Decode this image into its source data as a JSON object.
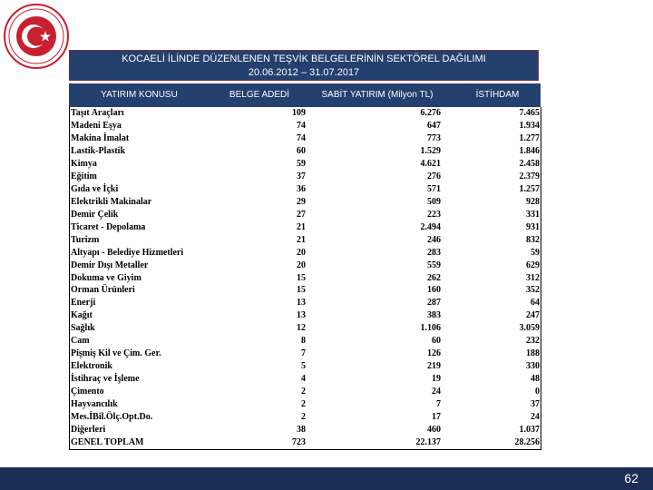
{
  "title": {
    "line1": "KOCAELİ İLİNDE DÜZENLENEN TEŞVİK BELGELERİNİN SEKTÖREL DAĞILIMI",
    "line2": "20.06.2012 – 31.07.2017"
  },
  "table": {
    "headers": [
      "YATIRIM KONUSU",
      "BELGE ADEDİ",
      "SABİT YATIRIM (Milyon TL)",
      "İSTİHDAM"
    ],
    "rows": [
      [
        "Taşıt Araçları",
        "109",
        "6.276",
        "7.465"
      ],
      [
        "Madeni Eşya",
        "74",
        "647",
        "1.934"
      ],
      [
        "Makina İmalat",
        "74",
        "773",
        "1.277"
      ],
      [
        "Lastik-Plastik",
        "60",
        "1.529",
        "1.846"
      ],
      [
        "Kimya",
        "59",
        "4.621",
        "2.458"
      ],
      [
        "Eğitim",
        "37",
        "276",
        "2.379"
      ],
      [
        "Gıda ve İçki",
        "36",
        "571",
        "1.257"
      ],
      [
        "Elektrikli Makinalar",
        "29",
        "509",
        "928"
      ],
      [
        "Demir Çelik",
        "27",
        "223",
        "331"
      ],
      [
        "Ticaret - Depolama",
        "21",
        "2.494",
        "931"
      ],
      [
        "Turizm",
        "21",
        "246",
        "832"
      ],
      [
        "Altyapı - Belediye Hizmetleri",
        "20",
        "283",
        "59"
      ],
      [
        "Demir Dışı Metaller",
        "20",
        "559",
        "629"
      ],
      [
        "Dokuma ve Giyim",
        "15",
        "262",
        "312"
      ],
      [
        "Orman Ürünleri",
        "15",
        "160",
        "352"
      ],
      [
        "Enerji",
        "13",
        "287",
        "64"
      ],
      [
        "Kağıt",
        "13",
        "383",
        "247"
      ],
      [
        "Sağlık",
        "12",
        "1.106",
        "3.059"
      ],
      [
        "Cam",
        "8",
        "60",
        "232"
      ],
      [
        "Pişmiş Kil ve Çim. Ger.",
        "7",
        "126",
        "188"
      ],
      [
        "Elektronik",
        "5",
        "219",
        "330"
      ],
      [
        "İstihraç ve İşleme",
        "4",
        "19",
        "48"
      ],
      [
        "Çimento",
        "2",
        "24",
        "0"
      ],
      [
        "Hayvancılık",
        "2",
        "7",
        "37"
      ],
      [
        "Mes.İBil.Ölç.Opt.Do.",
        "2",
        "17",
        "24"
      ],
      [
        "Diğerleri",
        "38",
        "460",
        "1.037"
      ],
      [
        "GENEL TOPLAM",
        "723",
        "22.137",
        "28.256"
      ]
    ]
  },
  "footer": {
    "page_number": "62"
  }
}
